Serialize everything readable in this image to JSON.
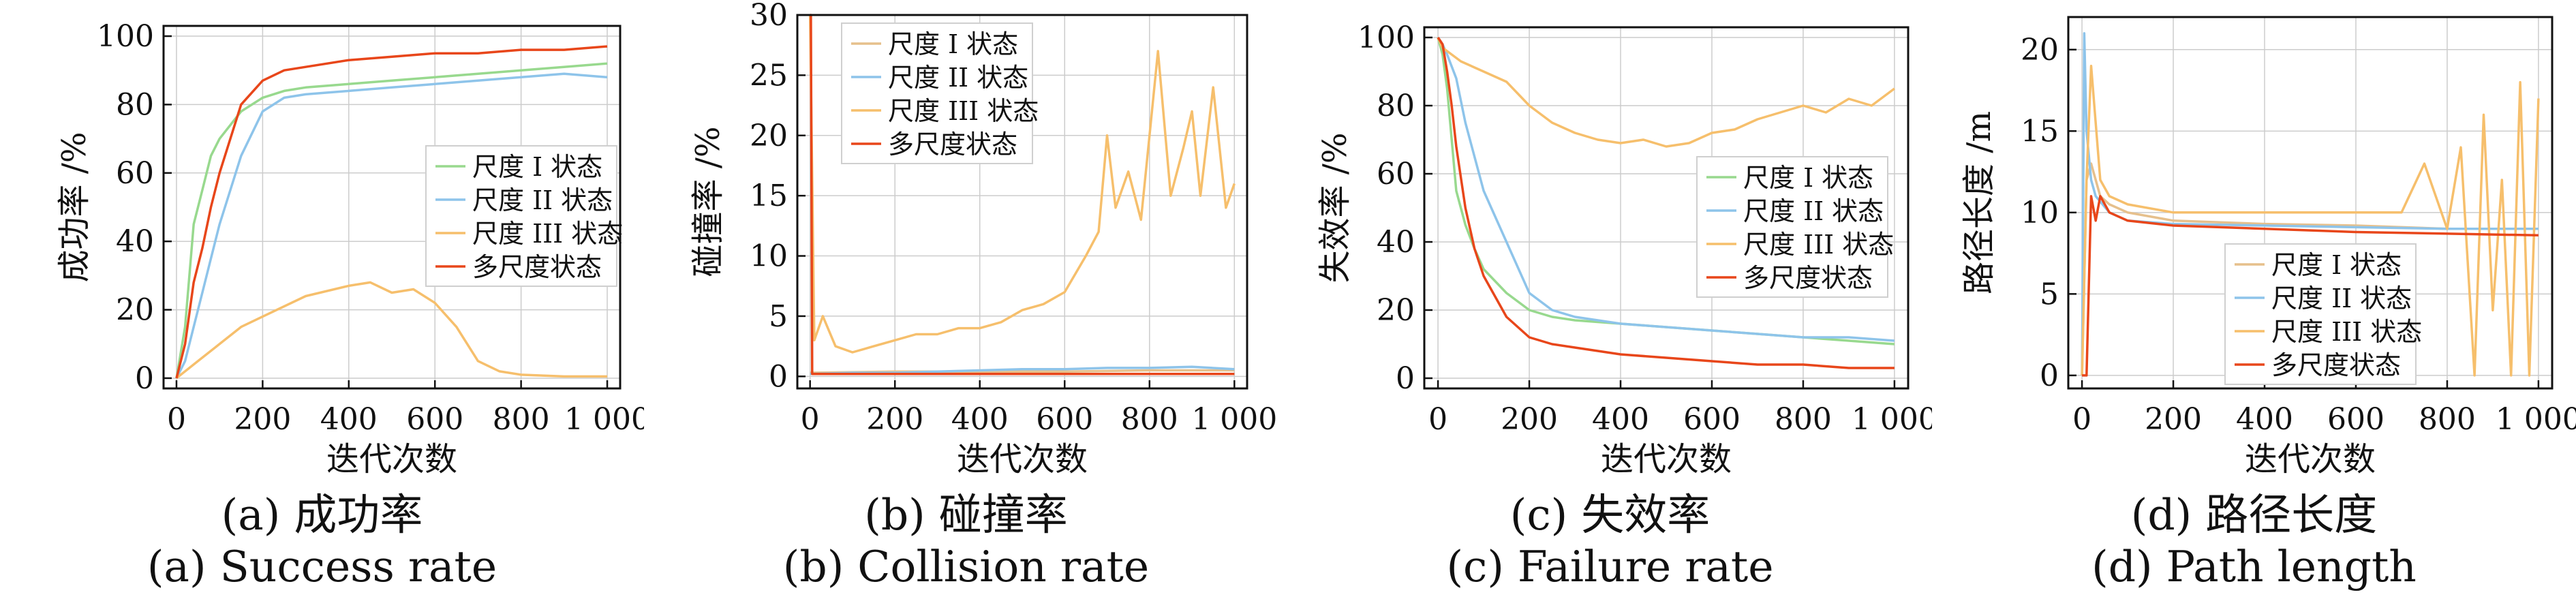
{
  "colors": {
    "s1": "#e6c08c",
    "s2": "#8ec4ea",
    "s3": "#f6bf6c",
    "s4": "#e8461a",
    "green": "#98d98e",
    "grid": "#cccccc",
    "axis": "#111111"
  },
  "chart_data": [
    {
      "type": "line",
      "caption_cn": "(a) 成功率",
      "caption_en": "(a) Success rate",
      "xlabel": "迭代次数",
      "ylabel": "成功率 /%",
      "xlim": [
        -30,
        1030
      ],
      "ylim": [
        -3,
        103
      ],
      "xticks": [
        0,
        200,
        400,
        600,
        800,
        1000
      ],
      "xtick_labels": [
        "0",
        "200",
        "400",
        "600",
        "800",
        "1 000"
      ],
      "yticks": [
        0,
        20,
        40,
        60,
        80,
        100
      ],
      "ytick_labels": [
        "0",
        "20",
        "40",
        "60",
        "80",
        "100"
      ],
      "grid": true,
      "legend_position": "center-right",
      "legend": [
        "尺度 I 状态",
        "尺度 II 状态",
        "尺度 III 状态",
        "多尺度状态"
      ],
      "series": [
        {
          "name": "尺度 I 状态",
          "color": "#98d98e",
          "x": [
            0,
            20,
            40,
            60,
            80,
            100,
            150,
            200,
            250,
            300,
            400,
            500,
            600,
            700,
            800,
            900,
            1000
          ],
          "y": [
            0,
            15,
            45,
            55,
            65,
            70,
            78,
            82,
            84,
            85,
            86,
            87,
            88,
            89,
            90,
            91,
            92
          ]
        },
        {
          "name": "尺度 II 状态",
          "color": "#8ec4ea",
          "x": [
            0,
            20,
            40,
            60,
            80,
            100,
            150,
            200,
            250,
            300,
            400,
            500,
            600,
            700,
            800,
            900,
            1000
          ],
          "y": [
            0,
            5,
            15,
            25,
            35,
            45,
            65,
            78,
            82,
            83,
            84,
            85,
            86,
            87,
            88,
            89,
            88
          ]
        },
        {
          "name": "尺度 III 状态",
          "color": "#f6bf6c",
          "x": [
            0,
            20,
            50,
            100,
            150,
            200,
            300,
            400,
            450,
            500,
            550,
            600,
            650,
            700,
            750,
            800,
            900,
            1000
          ],
          "y": [
            0,
            2,
            5,
            10,
            15,
            18,
            24,
            27,
            28,
            25,
            26,
            22,
            15,
            5,
            2,
            1,
            0.5,
            0.5
          ]
        },
        {
          "name": "多尺度状态",
          "color": "#e8461a",
          "x": [
            0,
            20,
            40,
            60,
            80,
            100,
            150,
            200,
            250,
            300,
            400,
            500,
            600,
            700,
            800,
            900,
            1000
          ],
          "y": [
            0,
            10,
            28,
            38,
            50,
            60,
            80,
            87,
            90,
            91,
            93,
            94,
            95,
            95,
            96,
            96,
            97
          ]
        }
      ]
    },
    {
      "type": "line",
      "caption_cn": "(b) 碰撞率",
      "caption_en": "(b) Collision rate",
      "xlabel": "迭代次数",
      "ylabel": "碰撞率 /%",
      "xlim": [
        -30,
        1030
      ],
      "ylim": [
        -1,
        30
      ],
      "xticks": [
        0,
        200,
        400,
        600,
        800,
        1000
      ],
      "xtick_labels": [
        "0",
        "200",
        "400",
        "600",
        "800",
        "1 000"
      ],
      "yticks": [
        0,
        5,
        10,
        15,
        20,
        25,
        30
      ],
      "ytick_labels": [
        "0",
        "5",
        "10",
        "15",
        "20",
        "25",
        "30"
      ],
      "grid": true,
      "legend_position": "top-left",
      "legend": [
        "尺度 I 状态",
        "尺度 II 状态",
        "尺度 III 状态",
        "多尺度状态"
      ],
      "series": [
        {
          "name": "尺度 I 状态",
          "color": "#e6c08c",
          "x": [
            0,
            200,
            400,
            600,
            800,
            1000
          ],
          "y": [
            0.3,
            0.4,
            0.4,
            0.4,
            0.5,
            0.5
          ]
        },
        {
          "name": "尺度 II 状态",
          "color": "#8ec4ea",
          "x": [
            0,
            100,
            200,
            300,
            400,
            500,
            600,
            700,
            800,
            900,
            1000
          ],
          "y": [
            0.2,
            0.3,
            0.3,
            0.4,
            0.5,
            0.6,
            0.6,
            0.7,
            0.7,
            0.8,
            0.6
          ]
        },
        {
          "name": "尺度 III 状态",
          "color": "#f6bf6c",
          "x": [
            0,
            10,
            30,
            60,
            100,
            150,
            200,
            250,
            300,
            350,
            400,
            450,
            500,
            550,
            600,
            650,
            680,
            700,
            720,
            750,
            780,
            800,
            820,
            850,
            880,
            900,
            920,
            950,
            980,
            1000
          ],
          "y": [
            30,
            3,
            5,
            2.5,
            2,
            2.5,
            3,
            3.5,
            3.5,
            4,
            4,
            4.5,
            5.5,
            6,
            7,
            10,
            12,
            20,
            14,
            17,
            13,
            20,
            27,
            15,
            19,
            22,
            15,
            24,
            14,
            16
          ]
        },
        {
          "name": "多尺度状态",
          "color": "#e8461a",
          "x": [
            0,
            2,
            5,
            100,
            200,
            400,
            600,
            800,
            1000
          ],
          "y": [
            30,
            30,
            0.2,
            0.2,
            0.2,
            0.2,
            0.2,
            0.2,
            0.2
          ]
        }
      ]
    },
    {
      "type": "line",
      "caption_cn": "(c) 失效率",
      "caption_en": "(c) Failure rate",
      "xlabel": "迭代次数",
      "ylabel": "失效率 /%",
      "xlim": [
        -30,
        1030
      ],
      "ylim": [
        -3,
        103
      ],
      "xticks": [
        0,
        200,
        400,
        600,
        800,
        1000
      ],
      "xtick_labels": [
        "0",
        "200",
        "400",
        "600",
        "800",
        "1 000"
      ],
      "yticks": [
        0,
        20,
        40,
        60,
        80,
        100
      ],
      "ytick_labels": [
        "0",
        "20",
        "40",
        "60",
        "80",
        "100"
      ],
      "grid": true,
      "legend_position": "center-right",
      "legend": [
        "尺度 I 状态",
        "尺度 II 状态",
        "尺度 III 状态",
        "多尺度状态"
      ],
      "series": [
        {
          "name": "尺度 I 状态",
          "color": "#98d98e",
          "x": [
            0,
            10,
            20,
            30,
            40,
            60,
            80,
            100,
            150,
            200,
            250,
            300,
            400,
            500,
            600,
            700,
            800,
            900,
            1000
          ],
          "y": [
            100,
            95,
            85,
            70,
            55,
            45,
            38,
            32,
            25,
            20,
            18,
            17,
            16,
            15,
            14,
            13,
            12,
            11,
            10
          ]
        },
        {
          "name": "尺度 II 状态",
          "color": "#8ec4ea",
          "x": [
            0,
            10,
            20,
            40,
            60,
            80,
            100,
            150,
            200,
            250,
            300,
            400,
            500,
            600,
            700,
            800,
            900,
            1000
          ],
          "y": [
            100,
            98,
            95,
            88,
            75,
            65,
            55,
            40,
            25,
            20,
            18,
            16,
            15,
            14,
            13,
            12,
            12,
            11
          ]
        },
        {
          "name": "尺度 III 状态",
          "color": "#f6bf6c",
          "x": [
            0,
            10,
            30,
            50,
            100,
            150,
            200,
            250,
            300,
            350,
            400,
            450,
            500,
            550,
            600,
            650,
            700,
            750,
            800,
            850,
            900,
            950,
            1000
          ],
          "y": [
            100,
            97,
            95,
            93,
            90,
            87,
            80,
            75,
            72,
            70,
            69,
            70,
            68,
            69,
            72,
            73,
            76,
            78,
            80,
            78,
            82,
            80,
            85
          ]
        },
        {
          "name": "多尺度状态",
          "color": "#e8461a",
          "x": [
            0,
            10,
            20,
            30,
            40,
            60,
            80,
            100,
            150,
            200,
            250,
            300,
            400,
            500,
            600,
            700,
            800,
            900,
            1000
          ],
          "y": [
            100,
            98,
            90,
            80,
            68,
            50,
            38,
            30,
            18,
            12,
            10,
            9,
            7,
            6,
            5,
            4,
            4,
            3,
            3
          ]
        }
      ]
    },
    {
      "type": "line",
      "caption_cn": "(d) 路径长度",
      "caption_en": "(d) Path length",
      "xlabel": "迭代次数",
      "ylabel": "路径长度 /m",
      "xlim": [
        -30,
        1030
      ],
      "ylim": [
        -0.8,
        22
      ],
      "xticks": [
        0,
        200,
        400,
        600,
        800,
        1000
      ],
      "xtick_labels": [
        "0",
        "200",
        "400",
        "600",
        "800",
        "1 000"
      ],
      "yticks": [
        0,
        5,
        10,
        15,
        20
      ],
      "ytick_labels": [
        "0",
        "5",
        "10",
        "15",
        "20"
      ],
      "grid": true,
      "legend_position": "bottom-center",
      "legend": [
        "尺度 I 状态",
        "尺度 II 状态",
        "尺度 III 状态",
        "多尺度状态"
      ],
      "series": [
        {
          "name": "尺度 I 状态",
          "color": "#e6c08c",
          "x": [
            0,
            10,
            20,
            30,
            40,
            60,
            100,
            200,
            400,
            600,
            800,
            1000
          ],
          "y": [
            0,
            12,
            13,
            12,
            11,
            10.5,
            10,
            9.5,
            9.3,
            9.2,
            9.0,
            9.0
          ]
        },
        {
          "name": "尺度 II 状态",
          "color": "#8ec4ea",
          "x": [
            0,
            5,
            10,
            20,
            30,
            60,
            100,
            200,
            400,
            600,
            800,
            1000
          ],
          "y": [
            0,
            21,
            15,
            12,
            11,
            10,
            9.5,
            9.3,
            9.2,
            9.1,
            9.0,
            9.0
          ]
        },
        {
          "name": "尺度 III 状态",
          "color": "#f6bf6c",
          "x": [
            0,
            10,
            20,
            40,
            60,
            100,
            200,
            400,
            600,
            700,
            750,
            800,
            830,
            860,
            880,
            900,
            920,
            940,
            960,
            980,
            1000
          ],
          "y": [
            0,
            12,
            19,
            12,
            11,
            10.5,
            10,
            10,
            10,
            10,
            13,
            9,
            14,
            0,
            16,
            4,
            12,
            0,
            18,
            0,
            17
          ]
        },
        {
          "name": "多尺度状态",
          "color": "#e8461a",
          "x": [
            0,
            10,
            20,
            30,
            40,
            60,
            100,
            200,
            400,
            600,
            800,
            1000
          ],
          "y": [
            0,
            0,
            11,
            9.5,
            11,
            10,
            9.5,
            9.2,
            9.0,
            8.8,
            8.7,
            8.6
          ]
        }
      ]
    }
  ]
}
